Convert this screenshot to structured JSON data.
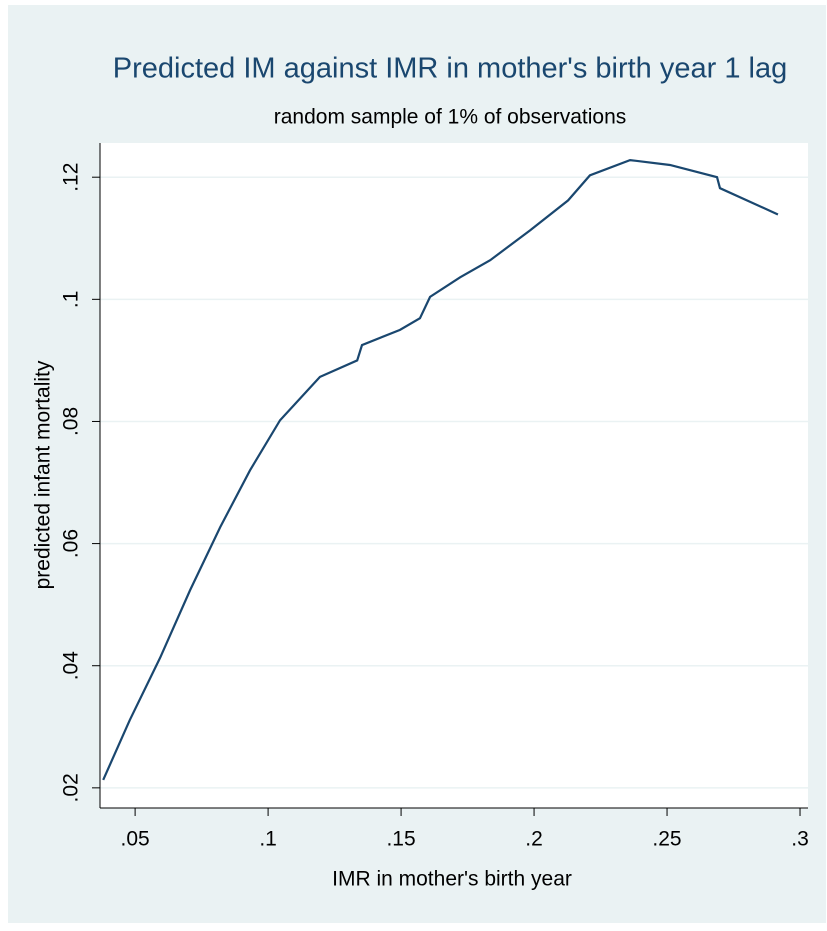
{
  "chart_data": {
    "type": "line",
    "title": "Predicted IM against IMR in mother's birth year 1 lag",
    "subtitle": "random sample of 1% of observations",
    "x_label": "IMR in mother's birth year",
    "y_label": "predicted infant mortality",
    "x": [
      0.038,
      0.048,
      0.0594,
      0.0707,
      0.082,
      0.0932,
      0.1045,
      0.1195,
      0.1335,
      0.1353,
      0.1496,
      0.1571,
      0.1609,
      0.1722,
      0.1835,
      0.1985,
      0.2128,
      0.221,
      0.2361,
      0.2511,
      0.2688,
      0.2699,
      0.2917
    ],
    "series": [
      {
        "name": "predicted infant mortality",
        "color": "#1a476f",
        "values": [
          0.0213,
          0.0311,
          0.0413,
          0.0524,
          0.0627,
          0.072,
          0.0802,
          0.0873,
          0.09,
          0.0925,
          0.095,
          0.0969,
          0.1004,
          0.1036,
          0.1064,
          0.1113,
          0.1162,
          0.1203,
          0.1228,
          0.122,
          0.12,
          0.1182,
          0.1139
        ]
      }
    ],
    "xlim": [
      0.0368,
      0.303
    ],
    "ylim": [
      0.0167,
      0.1256
    ],
    "xticks": [
      {
        "value": 0.05,
        "label": ".05"
      },
      {
        "value": 0.1,
        "label": ".1"
      },
      {
        "value": 0.15,
        "label": ".15"
      },
      {
        "value": 0.2,
        "label": ".2"
      },
      {
        "value": 0.25,
        "label": ".25"
      },
      {
        "value": 0.3,
        "label": ".3"
      }
    ],
    "yticks": [
      {
        "value": 0.02,
        "label": ".02"
      },
      {
        "value": 0.04,
        "label": ".04"
      },
      {
        "value": 0.06,
        "label": ".06"
      },
      {
        "value": 0.08,
        "label": ".08"
      },
      {
        "value": 0.1,
        "label": ".1"
      },
      {
        "value": 0.12,
        "label": ".12"
      }
    ],
    "grid": true
  }
}
